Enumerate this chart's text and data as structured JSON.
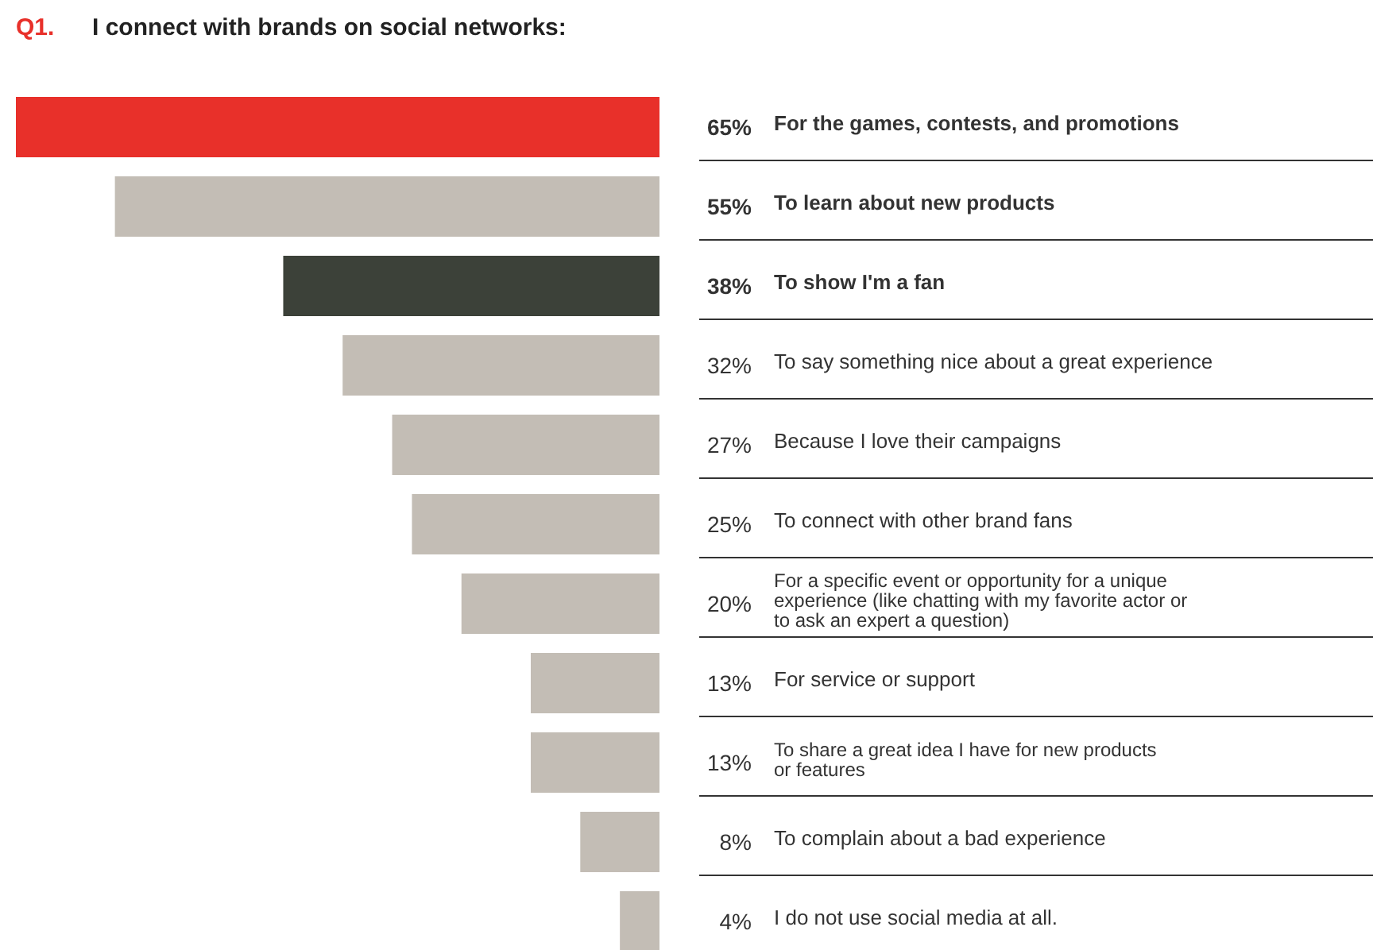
{
  "chart_data": {
    "type": "bar",
    "orientation": "horizontal",
    "title": "I connect with brands on social networks:",
    "annotations": [
      "Q1."
    ],
    "categories": [
      "For the games, contests, and promotions",
      "To learn about new products",
      "To show I'm a fan",
      "To say something nice about a great experience",
      "Because I love their campaigns",
      "To connect with other brand fans",
      "For a specific event or opportunity for a unique\nexperience (like chatting with my favorite actor or\nto ask an expert a question)",
      "For service or support",
      "To share a great idea I have for new products\nor features",
      "To complain about a bad experience",
      "I do not use social media at all."
    ],
    "values": [
      65,
      55,
      38,
      32,
      27,
      25,
      20,
      13,
      13,
      8,
      4
    ],
    "value_labels": [
      "65%",
      "55%",
      "38%",
      "32%",
      "27%",
      "25%",
      "20%",
      "13%",
      "13%",
      "8%",
      "4%"
    ],
    "colors": [
      "#e8302a",
      "#c3bdb5",
      "#3c4139",
      "#c3bdb5",
      "#c3bdb5",
      "#c3bdb5",
      "#c3bdb5",
      "#c3bdb5",
      "#c3bdb5",
      "#c3bdb5",
      "#c3bdb5"
    ],
    "relative": false
  }
}
